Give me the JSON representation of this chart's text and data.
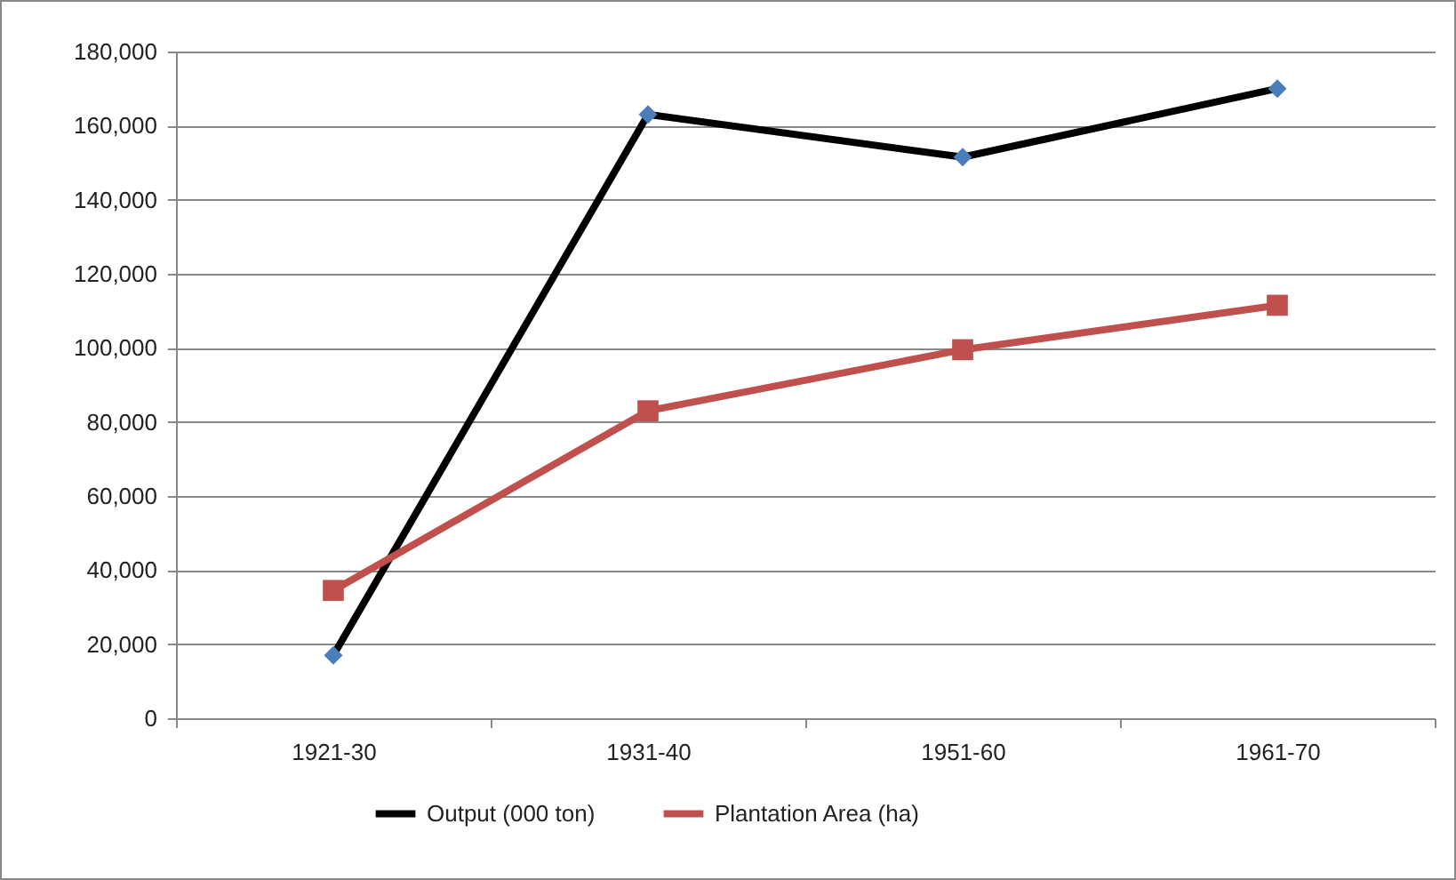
{
  "chart_data": {
    "type": "line",
    "categories": [
      "1921-30",
      "1931-40",
      "1951-60",
      "1961-70"
    ],
    "series": [
      {
        "name": "Output (000 ton)",
        "color": "#000000",
        "colors": [
          "#4a7ebb",
          "#4a7ebb",
          "#4a7ebb",
          "#4a7ebb"
        ],
        "marker": "diamond",
        "values": [
          17000,
          163000,
          151500,
          170000
        ]
      },
      {
        "name": "Plantation Area (ha)",
        "color": "#c0504d",
        "colors": [
          "#c0504d",
          "#c0504d",
          "#c0504d",
          "#c0504d"
        ],
        "marker": "square",
        "values": [
          34500,
          83000,
          99500,
          111500
        ]
      }
    ],
    "ylim": [
      0,
      180000
    ],
    "yticks": [
      {
        "value": 0,
        "label": "0"
      },
      {
        "value": 20000,
        "label": "20,000"
      },
      {
        "value": 40000,
        "label": "40,000"
      },
      {
        "value": 60000,
        "label": "60,000"
      },
      {
        "value": 80000,
        "label": "80,000"
      },
      {
        "value": 100000,
        "label": "100,000"
      },
      {
        "value": 120000,
        "label": "120,000"
      },
      {
        "value": 140000,
        "label": "140,000"
      },
      {
        "value": 160000,
        "label": "160,000"
      },
      {
        "value": 180000,
        "label": "180,000"
      }
    ],
    "grid": "y",
    "legend": "bottom",
    "line_style": "solid"
  }
}
